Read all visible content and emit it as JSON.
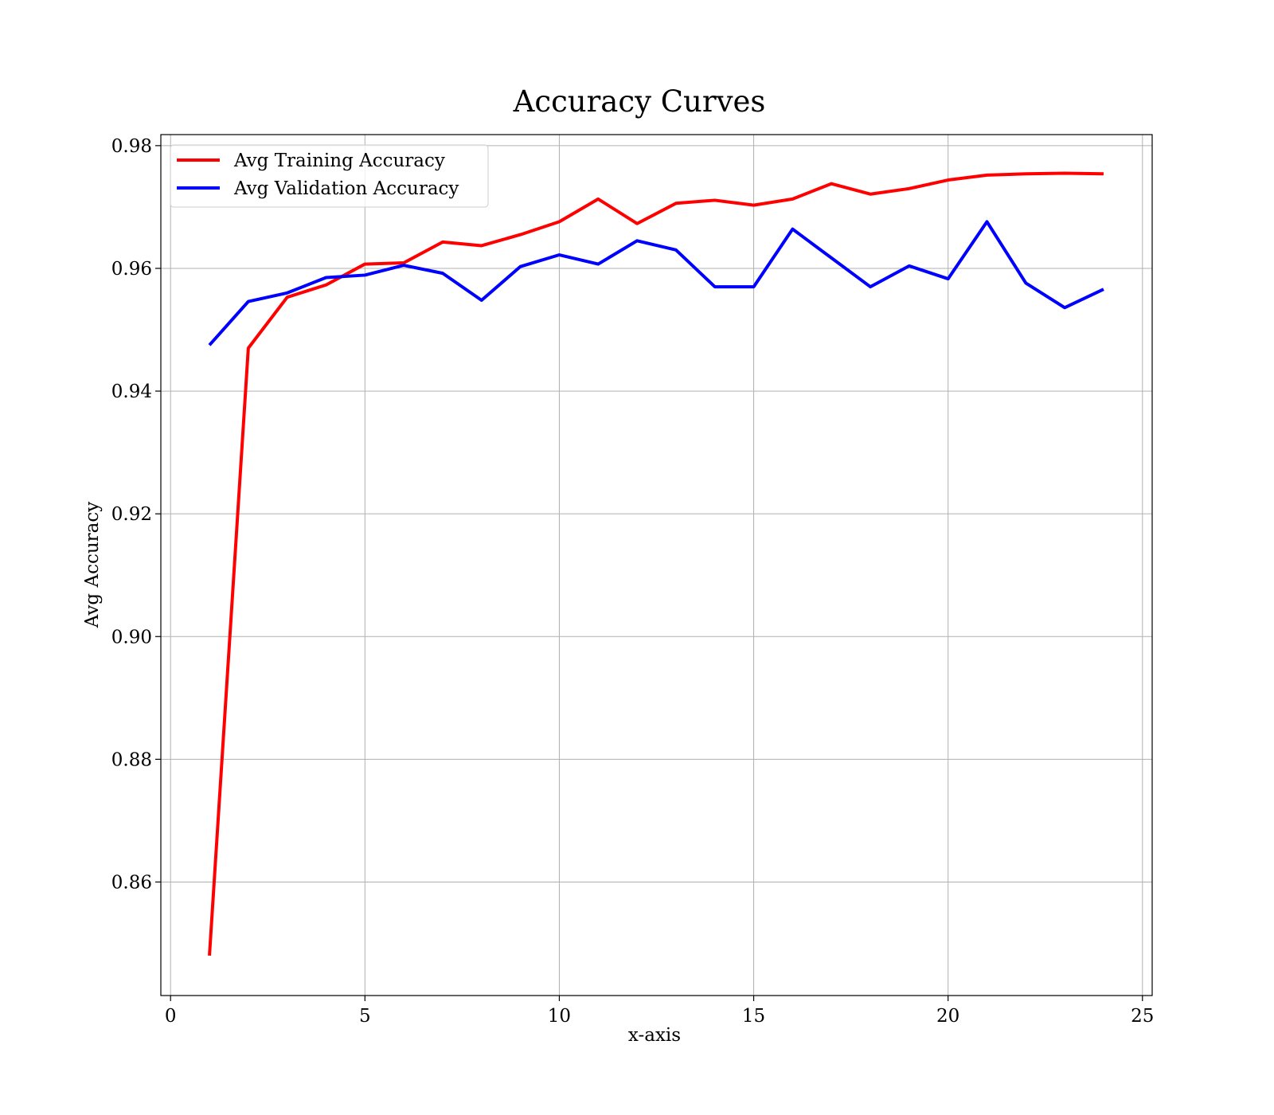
{
  "chart_data": {
    "type": "line",
    "title": "Accuracy Curves",
    "xlabel": "x-axis",
    "ylabel": "Avg Accuracy",
    "xlim": [
      -0.25,
      25.25
    ],
    "ylim": [
      0.8415,
      0.9818
    ],
    "xticks": [
      0,
      5,
      10,
      15,
      20,
      25
    ],
    "xtick_labels": [
      "0",
      "5",
      "10",
      "15",
      "20",
      "25"
    ],
    "yticks": [
      0.86,
      0.88,
      0.9,
      0.92,
      0.94,
      0.96,
      0.98
    ],
    "ytick_labels": [
      "0.86",
      "0.88",
      "0.90",
      "0.92",
      "0.94",
      "0.96",
      "0.98"
    ],
    "grid": true,
    "legend_position": "top-left",
    "x": [
      1,
      2,
      3,
      4,
      5,
      6,
      7,
      8,
      9,
      10,
      11,
      12,
      13,
      14,
      15,
      16,
      17,
      18,
      19,
      20,
      21,
      22,
      23,
      24
    ],
    "series": [
      {
        "name": "Avg Training Accuracy",
        "color": "#ff0000",
        "values": [
          0.848,
          0.947,
          0.9553,
          0.9573,
          0.9607,
          0.9609,
          0.9643,
          0.9637,
          0.9655,
          0.9676,
          0.9713,
          0.9673,
          0.9706,
          0.9711,
          0.9703,
          0.9713,
          0.9738,
          0.9721,
          0.973,
          0.9744,
          0.9752,
          0.9754,
          0.9755,
          0.9754
        ]
      },
      {
        "name": "Avg Validation Accuracy",
        "color": "#0000ff",
        "values": [
          0.9475,
          0.9546,
          0.956,
          0.9585,
          0.9589,
          0.9605,
          0.9592,
          0.9548,
          0.9603,
          0.9622,
          0.9607,
          0.9645,
          0.963,
          0.957,
          0.957,
          0.9664,
          0.9617,
          0.957,
          0.9604,
          0.9583,
          0.9676,
          0.9576,
          0.9536,
          0.9566
        ]
      }
    ]
  }
}
